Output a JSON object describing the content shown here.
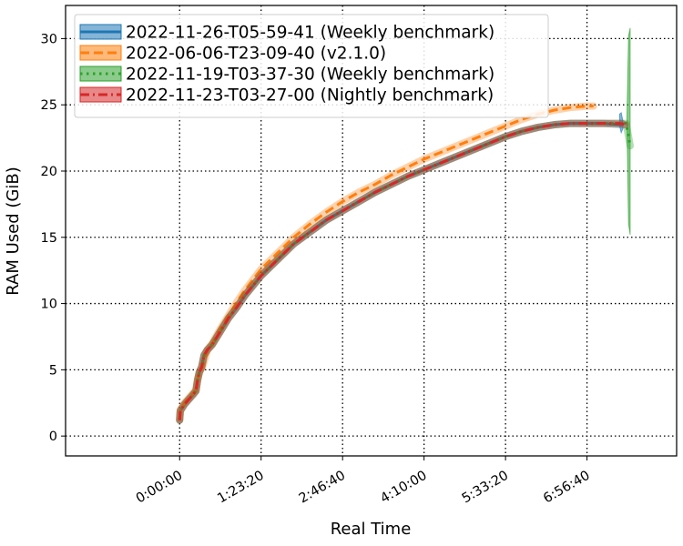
{
  "chart_data": {
    "type": "line",
    "xlabel": "Real Time",
    "ylabel": "RAM Used (GiB)",
    "xlim": [
      -7000,
      30500
    ],
    "ylim": [
      -1.5,
      32.5
    ],
    "x_ticks": [
      0,
      5000,
      10000,
      15000,
      20000,
      25000
    ],
    "x_tick_labels": [
      "0:00:00",
      "1:23:20",
      "2:46:40",
      "4:10:00",
      "5:33:20",
      "6:56:40"
    ],
    "y_ticks": [
      0,
      5,
      10,
      15,
      20,
      25,
      30
    ],
    "y_tick_labels": [
      "0",
      "5",
      "10",
      "15",
      "20",
      "25",
      "30"
    ],
    "grid": true,
    "legend_position": "top-left",
    "series": [
      {
        "name": "2022-11-26-T05-59-41 (Weekly benchmark)",
        "color": "#1f77b4",
        "linestyle": "solid",
        "band": [
          [
            27000,
            23.4,
            24.3
          ],
          [
            27100,
            22.9,
            24.4
          ],
          [
            27200,
            23.2,
            23.8
          ]
        ],
        "x": [
          0,
          40,
          300,
          800,
          1000,
          1100,
          1200,
          1350,
          1500,
          1700,
          2000,
          2500,
          3000,
          3500,
          4000,
          5000,
          6000,
          7000,
          8000,
          9000,
          10000,
          11000,
          12000,
          13000,
          14000,
          15000,
          16000,
          17000,
          18000,
          19000,
          20000,
          21000,
          22000,
          23000,
          24000,
          25000,
          26000,
          27000,
          27150,
          27250
        ],
        "y": [
          1.2,
          1.9,
          2.4,
          3.1,
          3.4,
          4.2,
          4.8,
          5.2,
          6.1,
          6.5,
          6.9,
          7.9,
          8.9,
          9.7,
          10.6,
          12.1,
          13.3,
          14.5,
          15.4,
          16.3,
          17.0,
          17.7,
          18.4,
          19.0,
          19.6,
          20.1,
          20.6,
          21.1,
          21.6,
          22.1,
          22.6,
          23.0,
          23.3,
          23.5,
          23.6,
          23.6,
          23.6,
          23.5,
          23.6,
          23.5
        ]
      },
      {
        "name": "2022-06-06-T23-09-40 (v2.1.0)",
        "color": "#ff7f0e",
        "linestyle": "dashed",
        "band": [],
        "x": [
          0,
          40,
          300,
          800,
          1000,
          1100,
          1250,
          1400,
          1550,
          1700,
          2000,
          2500,
          3000,
          3500,
          4000,
          5000,
          6000,
          7000,
          8000,
          9000,
          10000,
          11000,
          12000,
          13000,
          14000,
          15000,
          16000,
          17000,
          18000,
          19000,
          20000,
          21000,
          22000,
          23000,
          24000,
          25000,
          25400
        ],
        "y": [
          1.3,
          2.0,
          2.5,
          3.2,
          3.5,
          4.3,
          4.9,
          5.2,
          5.8,
          6.5,
          7.0,
          8.1,
          9.1,
          10.1,
          11.0,
          12.6,
          13.8,
          15.0,
          16.0,
          16.9,
          17.7,
          18.4,
          19.0,
          19.7,
          20.3,
          20.9,
          21.4,
          21.9,
          22.4,
          22.9,
          23.4,
          23.9,
          24.3,
          24.6,
          24.8,
          24.9,
          24.9
        ]
      },
      {
        "name": "2022-11-19-T03-37-30 (Weekly benchmark)",
        "color": "#2ca02c",
        "linestyle": "dotted",
        "band": [
          [
            27450,
            23.5,
            24.0
          ],
          [
            27550,
            16.0,
            30.2
          ],
          [
            27650,
            15.2,
            30.8
          ]
        ],
        "x": [
          0,
          40,
          300,
          800,
          1000,
          1100,
          1200,
          1350,
          1500,
          1700,
          2000,
          2500,
          3000,
          3500,
          4000,
          5000,
          6000,
          7000,
          8000,
          9000,
          10000,
          11000,
          12000,
          13000,
          14000,
          15000,
          16000,
          17000,
          18000,
          19000,
          20000,
          21000,
          22000,
          23000,
          24000,
          25000,
          26000,
          27000,
          27400,
          27550,
          27650
        ],
        "y": [
          1.2,
          1.9,
          2.4,
          3.1,
          3.4,
          4.2,
          4.8,
          5.2,
          6.1,
          6.5,
          6.9,
          7.9,
          8.9,
          9.7,
          10.6,
          12.1,
          13.3,
          14.5,
          15.4,
          16.3,
          17.0,
          17.7,
          18.4,
          19.0,
          19.6,
          20.1,
          20.6,
          21.1,
          21.6,
          22.1,
          22.6,
          23.0,
          23.3,
          23.5,
          23.6,
          23.6,
          23.6,
          23.6,
          23.6,
          22.6,
          21.9
        ]
      },
      {
        "name": "2022-11-23-T03-27-00 (Nightly benchmark)",
        "color": "#d62728",
        "linestyle": "dashdot",
        "band": [],
        "x": [
          0,
          40,
          300,
          800,
          1000,
          1100,
          1200,
          1350,
          1500,
          1700,
          2000,
          2500,
          3000,
          3500,
          4000,
          5000,
          6000,
          7000,
          8000,
          9000,
          10000,
          11000,
          12000,
          13000,
          14000,
          15000,
          16000,
          17000,
          18000,
          19000,
          20000,
          21000,
          22000,
          23000,
          24000,
          25000,
          26000,
          27000,
          27350
        ],
        "y": [
          1.2,
          1.9,
          2.4,
          3.1,
          3.4,
          4.2,
          4.8,
          5.2,
          6.1,
          6.5,
          6.9,
          7.9,
          8.9,
          9.7,
          10.6,
          12.1,
          13.3,
          14.5,
          15.4,
          16.3,
          17.0,
          17.7,
          18.4,
          19.0,
          19.6,
          20.1,
          20.6,
          21.1,
          21.6,
          22.1,
          22.6,
          23.0,
          23.3,
          23.5,
          23.6,
          23.6,
          23.6,
          23.6,
          23.5
        ]
      }
    ]
  }
}
